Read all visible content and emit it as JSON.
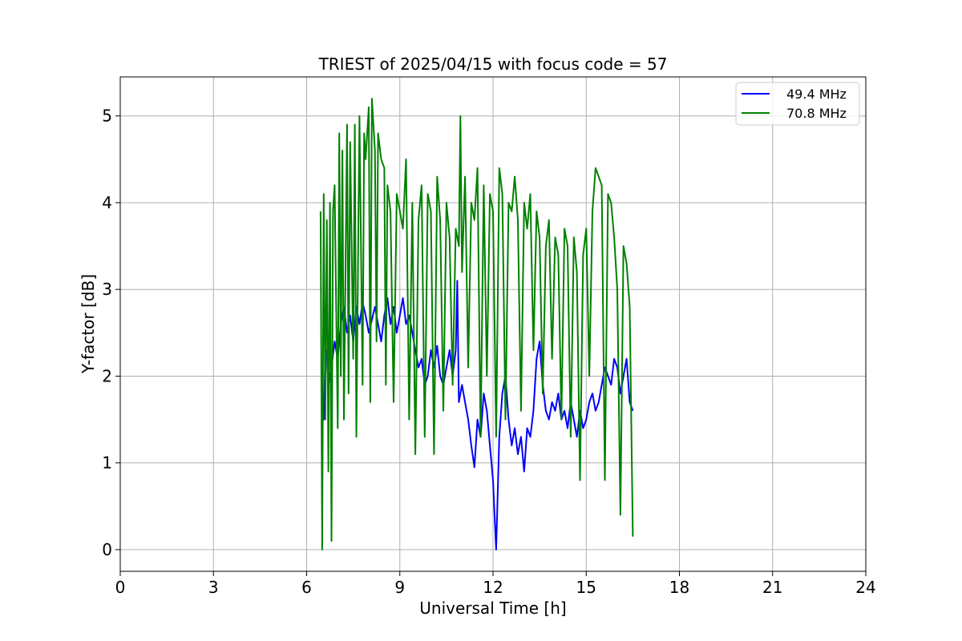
{
  "chart_data": {
    "type": "line",
    "title": "TRIEST of 2025/04/15 with focus code = 57",
    "xlabel": "Universal Time [h]",
    "ylabel": "Y-factor [dB]",
    "xlim": [
      0,
      24
    ],
    "ylim": [
      -0.25,
      5.45
    ],
    "xticks": [
      0,
      3,
      6,
      9,
      12,
      15,
      18,
      21,
      24
    ],
    "yticks": [
      0,
      1,
      2,
      3,
      4,
      5
    ],
    "grid": true,
    "legend_position": "top-right",
    "series": [
      {
        "name": "49.4 MHz",
        "color": "#0000ff",
        "x": [
          6.5,
          6.55,
          6.6,
          6.65,
          6.7,
          6.8,
          6.9,
          7.0,
          7.1,
          7.2,
          7.3,
          7.4,
          7.5,
          7.6,
          7.7,
          7.8,
          7.9,
          8.0,
          8.1,
          8.2,
          8.3,
          8.4,
          8.5,
          8.6,
          8.7,
          8.8,
          8.9,
          9.0,
          9.1,
          9.2,
          9.3,
          9.4,
          9.5,
          9.6,
          9.7,
          9.8,
          9.9,
          10.0,
          10.1,
          10.2,
          10.3,
          10.4,
          10.5,
          10.6,
          10.7,
          10.8,
          10.85,
          10.9,
          11.0,
          11.1,
          11.2,
          11.3,
          11.4,
          11.5,
          11.6,
          11.7,
          11.8,
          11.9,
          12.0,
          12.05,
          12.1,
          12.2,
          12.3,
          12.4,
          12.5,
          12.6,
          12.7,
          12.8,
          12.9,
          13.0,
          13.1,
          13.2,
          13.3,
          13.4,
          13.5,
          13.6,
          13.7,
          13.8,
          13.9,
          14.0,
          14.1,
          14.2,
          14.3,
          14.4,
          14.5,
          14.6,
          14.7,
          14.8,
          14.9,
          15.0,
          15.1,
          15.2,
          15.3,
          15.4,
          15.5,
          15.6,
          15.7,
          15.8,
          15.9,
          16.0,
          16.1,
          16.2,
          16.3,
          16.4,
          16.5
        ],
        "y": [
          1.8,
          1.5,
          2.2,
          2.3,
          1.9,
          2.1,
          2.4,
          2.2,
          2.6,
          2.8,
          2.5,
          2.7,
          2.4,
          2.8,
          2.6,
          2.85,
          2.7,
          2.5,
          2.65,
          2.8,
          2.6,
          2.4,
          2.7,
          2.9,
          2.6,
          2.8,
          2.5,
          2.7,
          2.9,
          2.6,
          2.7,
          2.5,
          2.3,
          2.1,
          2.2,
          1.9,
          2.0,
          2.3,
          2.1,
          2.35,
          2.0,
          1.9,
          2.1,
          2.3,
          2.0,
          2.3,
          3.1,
          1.7,
          1.9,
          1.7,
          1.5,
          1.2,
          0.95,
          1.5,
          1.3,
          1.8,
          1.6,
          1.2,
          0.8,
          0.4,
          0.0,
          1.3,
          1.8,
          2.0,
          1.5,
          1.2,
          1.4,
          1.1,
          1.3,
          0.9,
          1.4,
          1.3,
          1.6,
          2.2,
          2.4,
          1.9,
          1.6,
          1.5,
          1.7,
          1.6,
          1.8,
          1.5,
          1.6,
          1.4,
          1.7,
          1.5,
          1.3,
          1.6,
          1.4,
          1.5,
          1.7,
          1.8,
          1.6,
          1.7,
          1.9,
          2.1,
          2.0,
          1.9,
          2.2,
          2.1,
          1.8,
          2.0,
          2.2,
          1.7,
          1.6
        ]
      },
      {
        "name": "70.8 MHz",
        "color": "#008000",
        "x": [
          6.45,
          6.5,
          6.55,
          6.6,
          6.65,
          6.7,
          6.75,
          6.8,
          6.85,
          6.9,
          7.0,
          7.05,
          7.1,
          7.15,
          7.2,
          7.3,
          7.35,
          7.4,
          7.5,
          7.55,
          7.6,
          7.7,
          7.8,
          7.85,
          7.9,
          8.0,
          8.05,
          8.1,
          8.2,
          8.25,
          8.3,
          8.4,
          8.5,
          8.55,
          8.6,
          8.7,
          8.8,
          8.9,
          9.0,
          9.1,
          9.2,
          9.3,
          9.4,
          9.5,
          9.6,
          9.7,
          9.8,
          9.9,
          10.0,
          10.1,
          10.2,
          10.3,
          10.4,
          10.5,
          10.6,
          10.7,
          10.8,
          10.9,
          10.95,
          11.0,
          11.1,
          11.2,
          11.3,
          11.4,
          11.5,
          11.6,
          11.7,
          11.8,
          11.9,
          12.0,
          12.1,
          12.2,
          12.3,
          12.4,
          12.5,
          12.6,
          12.7,
          12.8,
          12.9,
          13.0,
          13.1,
          13.2,
          13.3,
          13.4,
          13.5,
          13.6,
          13.7,
          13.8,
          13.9,
          14.0,
          14.1,
          14.2,
          14.3,
          14.4,
          14.5,
          14.6,
          14.7,
          14.8,
          14.9,
          15.0,
          15.1,
          15.2,
          15.3,
          15.4,
          15.5,
          15.6,
          15.7,
          15.8,
          15.9,
          16.0,
          16.1,
          16.2,
          16.3,
          16.4,
          16.5
        ],
        "y": [
          3.9,
          0.0,
          4.1,
          1.5,
          3.8,
          0.9,
          4.0,
          0.1,
          3.9,
          4.2,
          1.4,
          4.8,
          2.0,
          4.6,
          1.5,
          4.9,
          1.8,
          4.7,
          2.2,
          4.9,
          1.3,
          5.0,
          1.9,
          4.8,
          4.5,
          5.1,
          1.7,
          5.2,
          4.6,
          2.4,
          4.8,
          4.5,
          4.4,
          1.9,
          4.2,
          3.9,
          1.7,
          4.1,
          3.9,
          3.7,
          4.5,
          1.5,
          4.0,
          1.1,
          3.8,
          4.2,
          1.3,
          4.1,
          3.9,
          1.1,
          4.3,
          3.8,
          1.6,
          4.0,
          3.6,
          1.9,
          3.7,
          3.5,
          5.0,
          3.2,
          4.3,
          2.1,
          4.0,
          3.8,
          4.4,
          1.3,
          4.2,
          2.0,
          4.1,
          3.9,
          1.3,
          4.4,
          4.1,
          1.5,
          4.0,
          3.9,
          4.3,
          3.8,
          1.6,
          4.0,
          3.7,
          4.1,
          2.3,
          3.9,
          3.6,
          1.8,
          3.5,
          3.8,
          2.2,
          3.6,
          3.4,
          1.5,
          3.7,
          3.5,
          1.3,
          3.6,
          3.2,
          0.8,
          3.4,
          3.7,
          2.0,
          3.9,
          4.4,
          4.3,
          4.2,
          0.8,
          4.1,
          4.0,
          3.6,
          3.0,
          0.4,
          3.5,
          3.3,
          2.8,
          0.15
        ]
      }
    ]
  }
}
